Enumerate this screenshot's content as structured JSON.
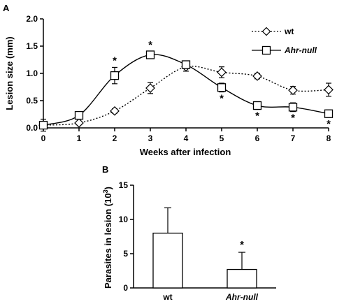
{
  "chart_data": [
    {
      "type": "line",
      "panel": "A",
      "xlabel": "Weeks after infection",
      "ylabel": "Lesion size (mm)",
      "xlim": [
        0,
        8
      ],
      "ylim": [
        0,
        2.0
      ],
      "x_ticks": [
        "0",
        "1",
        "2",
        "3",
        "4",
        "5",
        "6",
        "7",
        "8"
      ],
      "y_ticks": [
        "0.0",
        "0.5",
        "1.0",
        "1.5",
        "2.0"
      ],
      "legend_position": "top-right",
      "series": [
        {
          "name": "wt",
          "style": "dotted",
          "marker": "diamond",
          "x": [
            0,
            1,
            2,
            3,
            4,
            5,
            6,
            7,
            8
          ],
          "y": [
            0.05,
            0.09,
            0.31,
            0.73,
            1.12,
            1.02,
            0.95,
            0.69,
            0.7
          ],
          "error": [
            0.02,
            0.02,
            0.04,
            0.1,
            0.08,
            0.1,
            0.05,
            0.07,
            0.12
          ]
        },
        {
          "name": "Ahr-null",
          "style": "solid",
          "marker": "square",
          "x": [
            0,
            1,
            2,
            3,
            4,
            5,
            6,
            7,
            8
          ],
          "y": [
            0.05,
            0.23,
            0.96,
            1.34,
            1.16,
            0.74,
            0.41,
            0.38,
            0.26
          ],
          "error": [
            0.11,
            0.03,
            0.15,
            0.06,
            0.07,
            0.08,
            0.07,
            0.08,
            0.07
          ]
        }
      ],
      "significance_marker": "*",
      "significant_points": [
        {
          "x": 2,
          "position": "above"
        },
        {
          "x": 3,
          "position": "above"
        },
        {
          "x": 5,
          "position": "below"
        },
        {
          "x": 6,
          "position": "below"
        },
        {
          "x": 7,
          "position": "below"
        },
        {
          "x": 8,
          "position": "below"
        }
      ]
    },
    {
      "type": "bar",
      "panel": "B",
      "ylabel_main": "Parasites in lesion (10",
      "ylabel_sup": "3",
      "ylabel_close": ")",
      "categories": [
        "wt",
        "Ahr-null"
      ],
      "values": [
        8.0,
        2.7
      ],
      "error": [
        3.7,
        2.5
      ],
      "ylim": [
        0,
        15
      ],
      "y_ticks": [
        "0",
        "5",
        "10",
        "15"
      ],
      "significance_marker": "*",
      "significant_index": 1
    }
  ]
}
